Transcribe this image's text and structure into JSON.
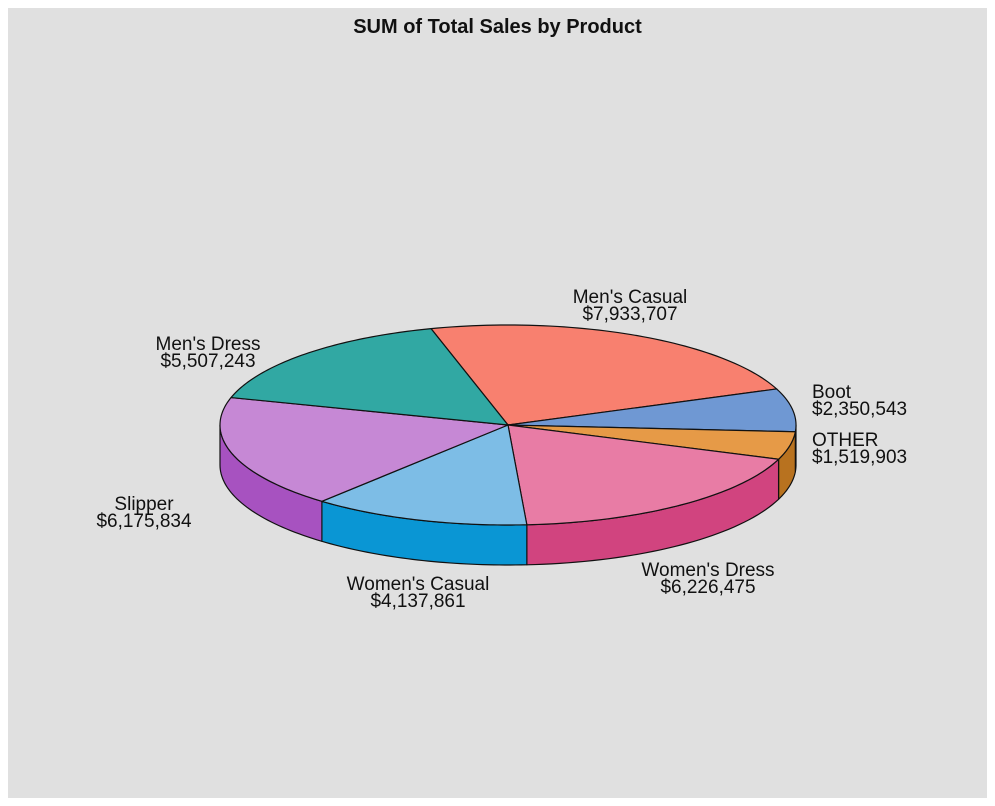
{
  "chart_data": {
    "type": "pie",
    "title": "SUM of Total Sales by Product",
    "slices": [
      {
        "label": "Men's Casual",
        "value": 7933707,
        "value_text": "$7,933,707",
        "color": "#f8806f",
        "side_color": "#e0604f"
      },
      {
        "label": "Boot",
        "value": 2350543,
        "value_text": "$2,350,543",
        "color": "#6f98d3",
        "side_color": "#4f78b3"
      },
      {
        "label": "OTHER",
        "value": 1519903,
        "value_text": "$1,519,903",
        "color": "#e69a47",
        "side_color": "#b8721f"
      },
      {
        "label": "Women's Dress",
        "value": 6226475,
        "value_text": "$6,226,475",
        "color": "#e87ca5",
        "side_color": "#d1447f"
      },
      {
        "label": "Women's Casual",
        "value": 4137861,
        "value_text": "$4,137,861",
        "color": "#7dbde6",
        "side_color": "#0a96d4"
      },
      {
        "label": "Slipper",
        "value": 6175834,
        "value_text": "$6,175,834",
        "color": "#c688d5",
        "side_color": "#a752c0"
      },
      {
        "label": "Men's Dress",
        "value": 5507243,
        "value_text": "$5,507,243",
        "color": "#31a8a3",
        "side_color": "#1f8580"
      }
    ]
  }
}
